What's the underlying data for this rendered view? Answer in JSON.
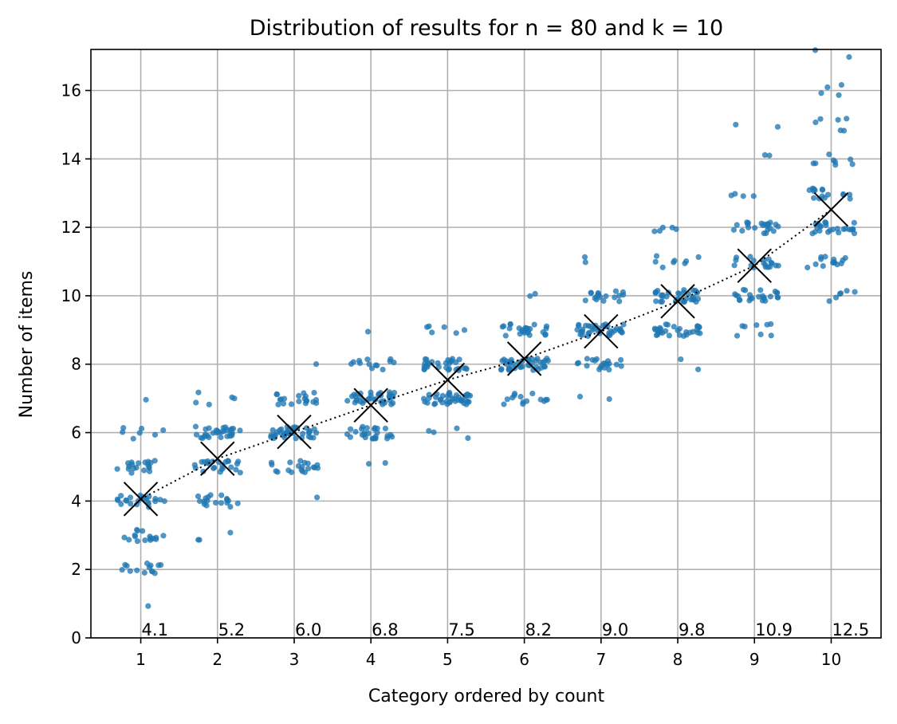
{
  "chart_data": {
    "type": "scatter",
    "title": "Distribution of results for n = 80 and k = 10",
    "xlabel": "Category ordered by count",
    "ylabel": "Number of items",
    "categories": [
      "1",
      "2",
      "3",
      "4",
      "5",
      "6",
      "7",
      "8",
      "9",
      "10"
    ],
    "xlim": [
      0.35,
      10.65
    ],
    "ylim": [
      0,
      17.2
    ],
    "yticks": [
      "0",
      "2",
      "4",
      "6",
      "8",
      "10",
      "12",
      "14",
      "16"
    ],
    "grid": true,
    "point_color": "#1f77b4",
    "mean_marker_color": "#000000",
    "means": [
      4.06,
      5.24,
      6.02,
      6.8,
      7.54,
      8.16,
      8.96,
      9.84,
      10.88,
      12.52
    ],
    "mean_labels": [
      "4.1",
      "5.2",
      "6.0",
      "6.8",
      "7.5",
      "8.2",
      "9.0",
      "9.8",
      "10.9",
      "12.5"
    ],
    "distributions": [
      {
        "category": "1",
        "values": [
          1,
          2,
          3,
          4,
          5,
          6,
          7
        ],
        "counts": [
          1,
          14,
          16,
          22,
          19,
          7,
          1
        ]
      },
      {
        "category": "2",
        "values": [
          3,
          4,
          5,
          6,
          7
        ],
        "counts": [
          3,
          18,
          24,
          30,
          5
        ]
      },
      {
        "category": "3",
        "values": [
          4,
          5,
          6,
          7,
          8
        ],
        "counts": [
          1,
          20,
          38,
          20,
          1
        ]
      },
      {
        "category": "4",
        "values": [
          5,
          6,
          7,
          8,
          9
        ],
        "counts": [
          2,
          26,
          38,
          13,
          1
        ]
      },
      {
        "category": "5",
        "values": [
          6,
          7,
          8,
          9
        ],
        "counts": [
          4,
          40,
          30,
          6
        ]
      },
      {
        "category": "6",
        "values": [
          7,
          8,
          9,
          10
        ],
        "counts": [
          14,
          40,
          24,
          2
        ]
      },
      {
        "category": "7",
        "values": [
          7,
          8,
          9,
          10,
          11
        ],
        "counts": [
          2,
          20,
          38,
          18,
          2
        ]
      },
      {
        "category": "8",
        "values": [
          8,
          9,
          10,
          11,
          12
        ],
        "counts": [
          2,
          30,
          35,
          8,
          5
        ]
      },
      {
        "category": "9",
        "values": [
          9,
          10,
          11,
          12,
          13,
          14,
          15
        ],
        "counts": [
          8,
          24,
          18,
          22,
          4,
          2,
          2
        ]
      },
      {
        "category": "10",
        "values": [
          10,
          11,
          12,
          13,
          14,
          15,
          16,
          17
        ],
        "counts": [
          6,
          14,
          24,
          16,
          8,
          6,
          4,
          2
        ]
      }
    ]
  }
}
